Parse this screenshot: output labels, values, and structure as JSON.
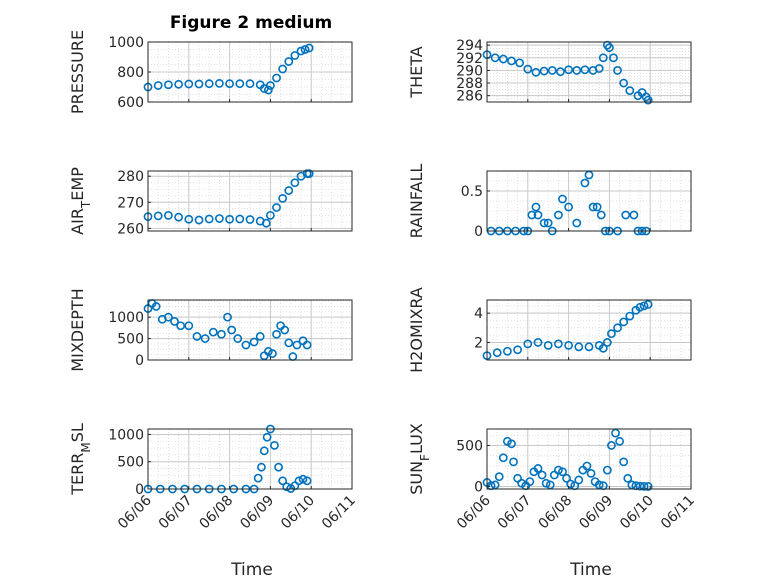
{
  "figure": {
    "title": "Figure 2 medium",
    "marker_color": "#0072BD",
    "grid": true,
    "x_axis_label": "Time"
  },
  "chart_data": [
    {
      "type": "scatter",
      "ylabel": "PRESSURE",
      "xlim": [
        "06/06",
        "06/11"
      ],
      "ylim": [
        600,
        1000
      ],
      "yticks": [
        600,
        800,
        1000
      ],
      "x_days": [
        0.0,
        0.25,
        0.5,
        0.75,
        1.0,
        1.25,
        1.5,
        1.75,
        2.0,
        2.25,
        2.5,
        2.75,
        2.85,
        2.95,
        3.0,
        3.15,
        3.3,
        3.45,
        3.6,
        3.75,
        3.85,
        3.95
      ],
      "y": [
        700,
        710,
        715,
        718,
        720,
        720,
        722,
        724,
        722,
        722,
        722,
        715,
        690,
        680,
        710,
        760,
        820,
        870,
        910,
        940,
        950,
        960
      ]
    },
    {
      "type": "scatter",
      "ylabel": "THETA",
      "xlim": [
        "06/06",
        "06/11"
      ],
      "ylim": [
        285,
        294.5
      ],
      "yticks": [
        286,
        288,
        290,
        292,
        294
      ],
      "x_days": [
        0.0,
        0.2,
        0.4,
        0.6,
        0.8,
        1.0,
        1.2,
        1.4,
        1.6,
        1.8,
        2.0,
        2.2,
        2.4,
        2.6,
        2.75,
        2.85,
        2.95,
        3.0,
        3.1,
        3.2,
        3.35,
        3.5,
        3.7,
        3.8,
        3.9,
        3.95
      ],
      "y": [
        292.5,
        292,
        291.8,
        291.5,
        291.2,
        290.2,
        289.7,
        289.9,
        290.0,
        289.8,
        290.1,
        290.0,
        290.1,
        290.0,
        290.3,
        292.0,
        294.0,
        293.6,
        292.0,
        290.0,
        288.0,
        286.8,
        286.0,
        286.5,
        285.8,
        285.3
      ]
    },
    {
      "type": "scatter",
      "ylabel": "AIR_TEMP",
      "xlim": [
        "06/06",
        "06/11"
      ],
      "ylim": [
        259,
        282
      ],
      "yticks": [
        260,
        270,
        280
      ],
      "x_days": [
        0.0,
        0.25,
        0.5,
        0.75,
        1.0,
        1.25,
        1.5,
        1.75,
        2.0,
        2.25,
        2.5,
        2.75,
        2.9,
        3.0,
        3.15,
        3.3,
        3.45,
        3.6,
        3.75,
        3.9,
        3.95
      ],
      "y": [
        264.5,
        264.8,
        265.0,
        264.3,
        263.5,
        263.2,
        263.6,
        263.8,
        263.5,
        263.6,
        263.4,
        262.8,
        262.0,
        265.0,
        268.0,
        271.5,
        274.5,
        277.5,
        280.0,
        281.0,
        281.0
      ]
    },
    {
      "type": "scatter",
      "ylabel": "RAINFALL",
      "xlim": [
        "06/06",
        "06/11"
      ],
      "ylim": [
        0,
        0.75
      ],
      "yticks": [
        0,
        0.5
      ],
      "x_days": [
        0.1,
        0.3,
        0.5,
        0.7,
        0.9,
        1.0,
        1.1,
        1.2,
        1.25,
        1.4,
        1.5,
        1.6,
        1.75,
        1.85,
        2.0,
        2.2,
        2.4,
        2.5,
        2.6,
        2.7,
        2.8,
        2.9,
        3.0,
        3.2,
        3.4,
        3.6,
        3.7,
        3.8,
        3.9
      ],
      "y": [
        0,
        0,
        0,
        0,
        0,
        0,
        0.2,
        0.3,
        0.2,
        0.1,
        0.1,
        0,
        0.2,
        0.4,
        0.3,
        0.1,
        0.6,
        0.7,
        0.3,
        0.3,
        0.2,
        0,
        0,
        0,
        0.2,
        0.2,
        0,
        0,
        0
      ]
    },
    {
      "type": "scatter",
      "ylabel": "MIXDEPTH",
      "xlim": [
        "06/06",
        "06/11"
      ],
      "ylim": [
        0,
        1400
      ],
      "yticks": [
        0,
        500,
        1000
      ],
      "x_days": [
        0.0,
        0.1,
        0.2,
        0.35,
        0.5,
        0.65,
        0.8,
        1.0,
        1.2,
        1.4,
        1.6,
        1.8,
        1.95,
        2.05,
        2.2,
        2.4,
        2.6,
        2.75,
        2.85,
        2.95,
        3.05,
        3.15,
        3.25,
        3.35,
        3.45,
        3.55,
        3.65,
        3.8,
        3.9
      ],
      "y": [
        1200,
        1320,
        1250,
        950,
        1000,
        900,
        800,
        800,
        550,
        500,
        650,
        600,
        1000,
        700,
        500,
        350,
        420,
        550,
        100,
        200,
        150,
        600,
        800,
        700,
        400,
        80,
        350,
        450,
        350
      ]
    },
    {
      "type": "scatter",
      "ylabel": "H2OMIXRA",
      "xlim": [
        "06/06",
        "06/11"
      ],
      "ylim": [
        0.8,
        4.9
      ],
      "yticks": [
        2,
        4
      ],
      "x_days": [
        0.0,
        0.25,
        0.5,
        0.75,
        1.0,
        1.25,
        1.5,
        1.75,
        2.0,
        2.25,
        2.5,
        2.75,
        2.85,
        2.95,
        3.05,
        3.2,
        3.35,
        3.5,
        3.65,
        3.75,
        3.85,
        3.95
      ],
      "y": [
        1.1,
        1.3,
        1.4,
        1.5,
        1.9,
        2.0,
        1.8,
        1.9,
        1.8,
        1.7,
        1.7,
        1.8,
        1.6,
        2.0,
        2.6,
        3.0,
        3.4,
        3.8,
        4.2,
        4.4,
        4.5,
        4.6
      ]
    },
    {
      "type": "scatter",
      "ylabel": "TERR_MSL",
      "xlim": [
        "06/06",
        "06/11"
      ],
      "ylim": [
        0,
        1100
      ],
      "yticks": [
        0,
        500,
        1000
      ],
      "x_days": [
        0.0,
        0.3,
        0.6,
        0.9,
        1.2,
        1.5,
        1.8,
        2.1,
        2.4,
        2.6,
        2.7,
        2.78,
        2.85,
        2.92,
        3.0,
        3.1,
        3.2,
        3.3,
        3.4,
        3.5,
        3.6,
        3.7,
        3.8,
        3.9
      ],
      "y": [
        0,
        0,
        0,
        0,
        0,
        0,
        0,
        0,
        0,
        0,
        200,
        400,
        700,
        950,
        1100,
        800,
        400,
        150,
        40,
        10,
        60,
        150,
        180,
        150
      ]
    },
    {
      "type": "scatter",
      "ylabel": "SUN_FLUX",
      "xlim": [
        "06/06",
        "06/11"
      ],
      "ylim": [
        -30,
        700
      ],
      "yticks": [
        0,
        500
      ],
      "x_days": [
        0.0,
        0.1,
        0.2,
        0.3,
        0.4,
        0.5,
        0.6,
        0.65,
        0.75,
        0.85,
        0.95,
        1.05,
        1.15,
        1.25,
        1.35,
        1.45,
        1.55,
        1.65,
        1.75,
        1.85,
        1.95,
        2.05,
        2.15,
        2.25,
        2.35,
        2.45,
        2.55,
        2.65,
        2.75,
        2.85,
        2.95,
        3.05,
        3.15,
        3.25,
        3.35,
        3.45,
        3.55,
        3.65,
        3.75,
        3.85,
        3.95
      ],
      "y": [
        50,
        10,
        20,
        120,
        350,
        550,
        520,
        300,
        100,
        40,
        10,
        60,
        180,
        220,
        140,
        40,
        20,
        140,
        200,
        180,
        100,
        30,
        10,
        80,
        200,
        250,
        160,
        60,
        20,
        10,
        200,
        500,
        650,
        550,
        300,
        100,
        20,
        10,
        5,
        2,
        1
      ]
    }
  ],
  "x_ticks": [
    "06/06",
    "06/07",
    "06/08",
    "06/09",
    "06/10",
    "06/11"
  ]
}
